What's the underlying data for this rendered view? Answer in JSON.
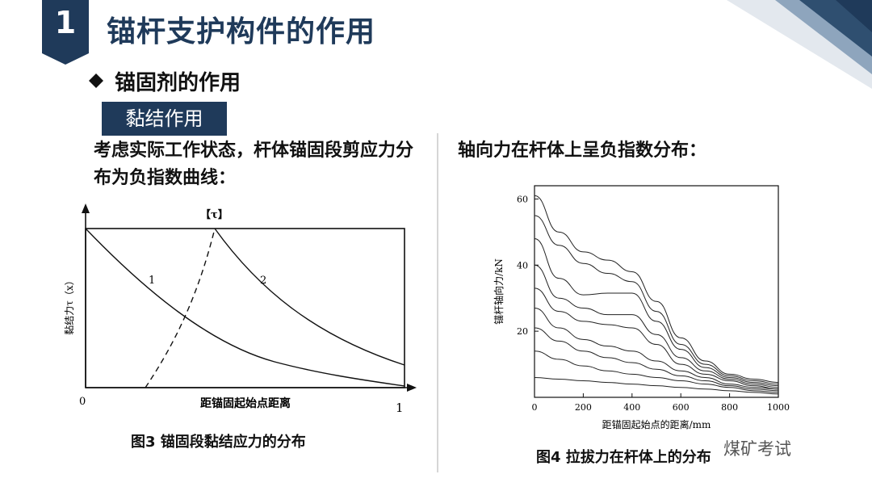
{
  "header": {
    "section_number": "1",
    "title": "锚杆支护构件的作用",
    "brand_color": "#1f3a5a"
  },
  "subtitle": "锚固剂的作用",
  "tag": "黏结作用",
  "left": {
    "description": "考虑实际工作状态，杆体锚固段剪应力分布为负指数曲线：",
    "figure": {
      "top_label": "【τ】",
      "ylabel": "黏结力τ（x）",
      "xlabel": "距锚固起始点距离",
      "x_start": "0",
      "x_end": "1",
      "curve1_label": "1",
      "curve2_label": "2"
    },
    "caption": "图3   锚固段黏结应力的分布"
  },
  "right": {
    "description": "轴向力在杆体上呈负指数分布：",
    "caption": "图4   拉拔力在杆体上的分布"
  },
  "chart_data": {
    "type": "line",
    "xlabel": "距锚固起始点的距离/mm",
    "ylabel": "锚杆轴向力/kN",
    "xlim": [
      0,
      1000
    ],
    "ylim": [
      0,
      64
    ],
    "xticks": [
      0,
      200,
      400,
      600,
      800,
      1000
    ],
    "yticks": [
      20,
      40,
      60
    ],
    "x": [
      0,
      100,
      200,
      300,
      400,
      500,
      600,
      700,
      800,
      900,
      1000
    ],
    "series": [
      {
        "values": [
          61,
          50,
          44,
          41.5,
          38,
          29,
          18,
          11,
          7,
          5.5,
          4.5
        ]
      },
      {
        "values": [
          55,
          46,
          40.5,
          37.5,
          35,
          26,
          16,
          10,
          6.5,
          5,
          4
        ]
      },
      {
        "values": [
          48,
          36,
          31,
          31.5,
          31.5,
          23,
          14.5,
          9,
          6,
          4.5,
          3.5
        ]
      },
      {
        "values": [
          40,
          30,
          27,
          25,
          25,
          19,
          12,
          8,
          5.5,
          4,
          3
        ]
      },
      {
        "values": [
          33,
          26,
          23,
          22,
          21,
          16,
          10,
          7,
          5,
          3.5,
          2.5
        ]
      },
      {
        "values": [
          27,
          21,
          17.5,
          15.5,
          14,
          11,
          8,
          6,
          4,
          3,
          2.5
        ]
      },
      {
        "values": [
          21,
          17,
          14,
          12,
          10.5,
          8.5,
          6.5,
          5,
          3.5,
          2.5,
          2
        ]
      },
      {
        "values": [
          14,
          11.5,
          9.5,
          8,
          7,
          6,
          5,
          4,
          3,
          2,
          1.5
        ]
      },
      {
        "values": [
          6,
          5.5,
          5,
          4.5,
          4,
          3.5,
          3,
          2.5,
          2,
          1.5,
          1
        ]
      }
    ]
  },
  "watermark": "煤矿考试"
}
